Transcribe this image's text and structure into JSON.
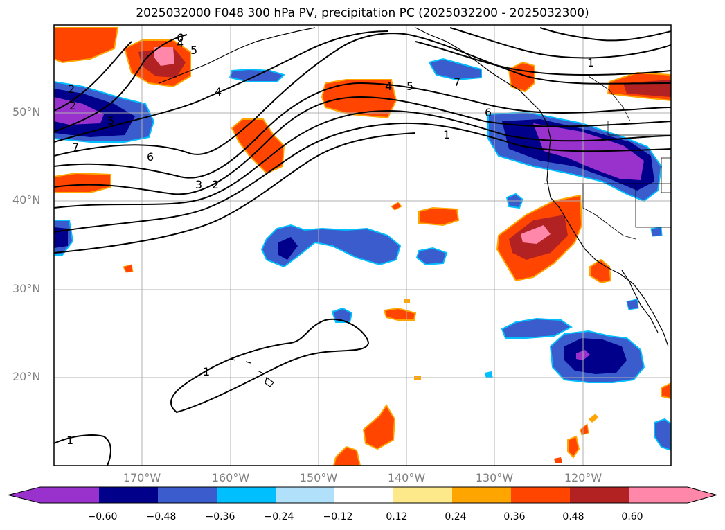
{
  "title": "2025032000 F048 300 hPa PV, precipitation PC (2025032200 - 2025032300)",
  "map": {
    "region": "North Pacific / western North America",
    "lon_range": [
      -180,
      -110
    ],
    "lat_range": [
      10,
      60
    ],
    "gridlines": true,
    "lat_labels": [
      "50°N",
      "40°N",
      "30°N",
      "20°N"
    ],
    "lon_labels": [
      "170°W",
      "160°W",
      "150°W",
      "140°W",
      "130°W",
      "120°W"
    ],
    "pv_contour_color": "#000000",
    "pv_contour_labels": [
      "4",
      "5",
      "6",
      "4",
      "2",
      "5",
      "6",
      "2",
      "7",
      "1",
      "3",
      "2",
      "4",
      "5",
      "7",
      "6",
      "1",
      "1",
      "1"
    ]
  },
  "colorbar": {
    "tick_labels": [
      "−0.60",
      "−0.48",
      "−0.36",
      "−0.24",
      "−0.12",
      "0.12",
      "0.24",
      "0.36",
      "0.48",
      "0.60"
    ],
    "colors": [
      "#9932cc",
      "#00008b",
      "#3a5ccc",
      "#00bfff",
      "#b0e0fa",
      "#ffffff",
      "#fde98a",
      "#ffa500",
      "#ff4500",
      "#b22222",
      "#ff88aa"
    ],
    "extend": "both"
  }
}
